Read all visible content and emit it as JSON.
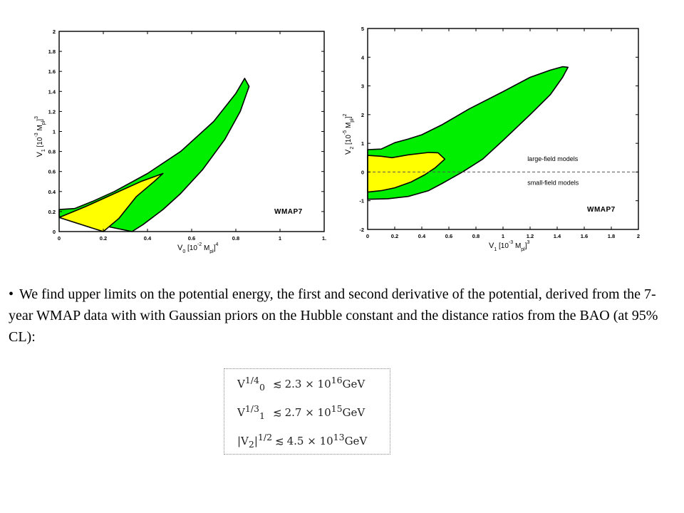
{
  "chart_data": [
    {
      "type": "contour",
      "title": "",
      "xlabel": "V0 [10^-2 Mpl]^4",
      "ylabel": "V1 [10^-3 Mpl]^3",
      "xlabel_main": "V",
      "xlabel_sub": "0",
      "xlabel_rest": " [10",
      "xlabel_exp": "-2",
      "xlabel_rest2": " M",
      "xlabel_sub2": "pl",
      "xlabel_rest3": "]",
      "xlabel_exp2": "4",
      "ylabel_main": "V",
      "ylabel_sub": "1",
      "ylabel_rest": " [10",
      "ylabel_exp": "-3",
      "ylabel_rest2": " M",
      "ylabel_sub2": "pl",
      "ylabel_rest3": "]",
      "ylabel_exp2": "3",
      "xlim": [
        0,
        1.2
      ],
      "ylim": [
        0,
        2
      ],
      "x_ticks": [
        "0",
        "0.2",
        "0.4",
        "0.6",
        "0.8",
        "1",
        "1."
      ],
      "x_tick_values": [
        0,
        0.2,
        0.4,
        0.6,
        0.8,
        1.0,
        1.2
      ],
      "y_ticks": [
        "0",
        "0.2",
        "0.4",
        "0.6",
        "0.8",
        "1",
        "1.2",
        "1.4",
        "1.6",
        "1.8",
        "2"
      ],
      "y_tick_values": [
        0,
        0.2,
        0.4,
        0.6,
        0.8,
        1.0,
        1.2,
        1.4,
        1.6,
        1.8,
        2.0
      ],
      "annotation": "WMAP7",
      "regions": [
        {
          "name": "95% CL",
          "color": "#00ee00",
          "points": [
            [
              0,
              0.15
            ],
            [
              0,
              0.22
            ],
            [
              0.07,
              0.23
            ],
            [
              0.15,
              0.3
            ],
            [
              0.25,
              0.4
            ],
            [
              0.4,
              0.58
            ],
            [
              0.55,
              0.8
            ],
            [
              0.7,
              1.1
            ],
            [
              0.8,
              1.38
            ],
            [
              0.84,
              1.53
            ],
            [
              0.86,
              1.45
            ],
            [
              0.82,
              1.2
            ],
            [
              0.75,
              0.92
            ],
            [
              0.65,
              0.62
            ],
            [
              0.55,
              0.38
            ],
            [
              0.47,
              0.22
            ],
            [
              0.38,
              0.07
            ],
            [
              0.33,
              0
            ]
          ]
        },
        {
          "name": "68% CL",
          "color": "#ffff00",
          "points": [
            [
              0,
              0.14
            ],
            [
              0.12,
              0.25
            ],
            [
              0.25,
              0.38
            ],
            [
              0.37,
              0.5
            ],
            [
              0.47,
              0.58
            ],
            [
              0.43,
              0.5
            ],
            [
              0.35,
              0.35
            ],
            [
              0.27,
              0.13
            ],
            [
              0.2,
              0
            ]
          ]
        }
      ]
    },
    {
      "type": "contour",
      "title": "",
      "xlabel": "V1 [10^-3 Mpl]^3",
      "ylabel": "V2 [10^-5 Mpl]^2",
      "xlabel_main": "V",
      "xlabel_sub": "1",
      "xlabel_rest": " [10",
      "xlabel_exp": "-3",
      "xlabel_rest2": " M",
      "xlabel_sub2": "pl",
      "xlabel_rest3": "]",
      "xlabel_exp2": "3",
      "ylabel_main": "V",
      "ylabel_sub": "2",
      "ylabel_rest": " [10",
      "ylabel_exp": "-5",
      "ylabel_rest2": " M",
      "ylabel_sub2": "pl",
      "ylabel_rest3": "]",
      "ylabel_exp2": "2",
      "xlim": [
        0,
        2
      ],
      "ylim": [
        -2,
        5
      ],
      "x_ticks": [
        "0",
        "0.2",
        "0.4",
        "0.6",
        "0.8",
        "1",
        "1.2",
        "1.4",
        "1.6",
        "1.8",
        "2"
      ],
      "x_tick_values": [
        0,
        0.2,
        0.4,
        0.6,
        0.8,
        1.0,
        1.2,
        1.4,
        1.6,
        1.8,
        2.0
      ],
      "y_ticks": [
        "-2",
        "-1",
        "0",
        "1",
        "2",
        "3",
        "4",
        "5"
      ],
      "y_tick_values": [
        -2,
        -1,
        0,
        1,
        2,
        3,
        4,
        5
      ],
      "annotation": "WMAP7",
      "reference_line": {
        "y": 0,
        "style": "dashed"
      },
      "region_labels": [
        {
          "text": "large-field models",
          "x": 1.18,
          "y": 0.38
        },
        {
          "text": "small-field models",
          "x": 1.18,
          "y": -0.45
        }
      ],
      "regions": [
        {
          "name": "95% CL",
          "color": "#00ee00",
          "points": [
            [
              0,
              -0.95
            ],
            [
              0,
              0.78
            ],
            [
              0.1,
              0.8
            ],
            [
              0.2,
              1.02
            ],
            [
              0.3,
              1.15
            ],
            [
              0.4,
              1.3
            ],
            [
              0.55,
              1.65
            ],
            [
              0.75,
              2.2
            ],
            [
              1.0,
              2.8
            ],
            [
              1.2,
              3.3
            ],
            [
              1.35,
              3.55
            ],
            [
              1.44,
              3.67
            ],
            [
              1.48,
              3.65
            ],
            [
              1.44,
              3.3
            ],
            [
              1.35,
              2.7
            ],
            [
              1.2,
              2.0
            ],
            [
              1.0,
              1.1
            ],
            [
              0.85,
              0.45
            ],
            [
              0.7,
              0.0
            ],
            [
              0.55,
              -0.4
            ],
            [
              0.45,
              -0.65
            ],
            [
              0.3,
              -0.85
            ],
            [
              0.15,
              -0.93
            ]
          ]
        },
        {
          "name": "68% CL",
          "color": "#ffff00",
          "points": [
            [
              0,
              -0.7
            ],
            [
              0,
              0.58
            ],
            [
              0.1,
              0.55
            ],
            [
              0.18,
              0.5
            ],
            [
              0.3,
              0.6
            ],
            [
              0.45,
              0.68
            ],
            [
              0.52,
              0.67
            ],
            [
              0.57,
              0.45
            ],
            [
              0.5,
              0.15
            ],
            [
              0.42,
              -0.1
            ],
            [
              0.32,
              -0.35
            ],
            [
              0.2,
              -0.55
            ],
            [
              0.1,
              -0.65
            ]
          ]
        }
      ]
    }
  ],
  "text": {
    "bullet": "•",
    "paragraph": "We find upper limits on the potential energy, the first and second derivative of the potential, derived from the 7-year WMAP data with with Gaussian priors on the Hubble constant and the distance ratios from the BAO (at 95% CL):"
  },
  "formulas": [
    {
      "lhs": "V",
      "lhs_sub": "0",
      "lhs_sup": "1/4",
      "rel": "≲",
      "mantissa": "2.3 × 10",
      "exp": "16",
      "unit": "GeV"
    },
    {
      "lhs": "V",
      "lhs_sub": "1",
      "lhs_sup": "1/3",
      "rel": "≲",
      "mantissa": "2.7 × 10",
      "exp": "15",
      "unit": "GeV"
    },
    {
      "lhs": "|V",
      "lhs_sub": "2",
      "lhs_post": "|",
      "lhs_sup": "1/2",
      "rel": "≲",
      "mantissa": "4.5 × 10",
      "exp": "13",
      "unit": "GeV"
    }
  ]
}
